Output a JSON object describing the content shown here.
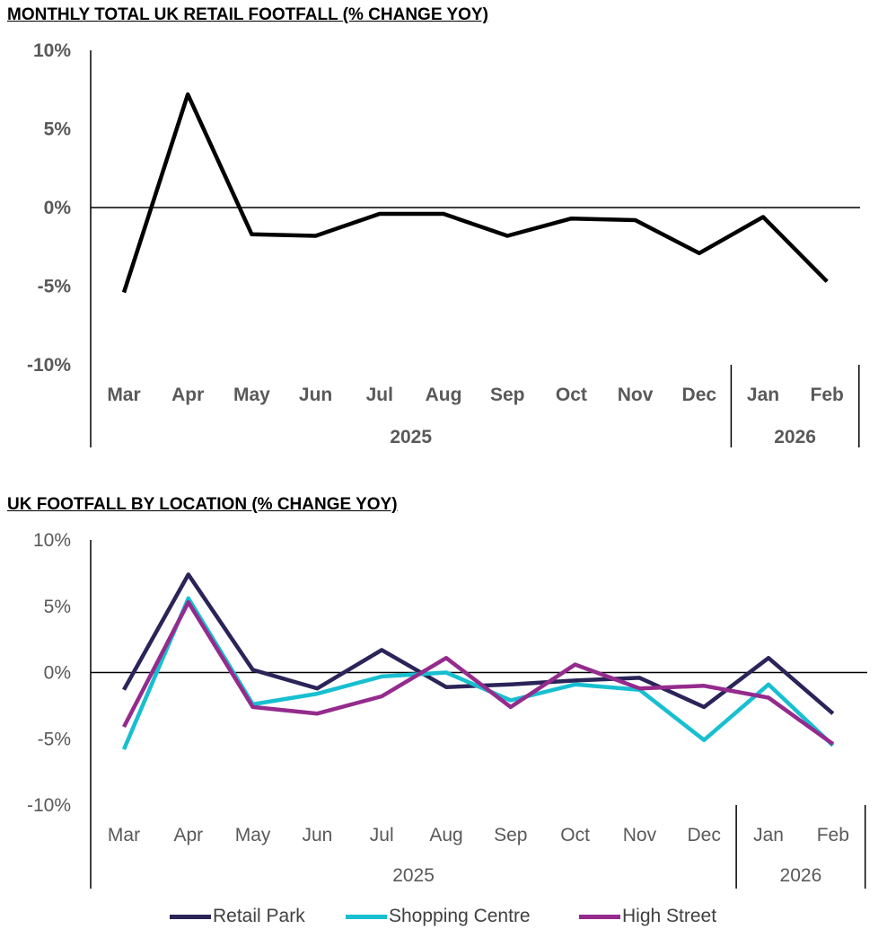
{
  "charts": {
    "footfall": {
      "title": "MONTHLY TOTAL UK RETAIL FOOTFALL (% CHANGE YOY)"
    },
    "by_location": {
      "title": "UK FOOTFALL BY LOCATION (% CHANGE YOY)"
    }
  },
  "chart_data": [
    {
      "type": "line",
      "title": "MONTHLY TOTAL UK RETAIL FOOTFALL (% CHANGE YOY)",
      "categories": [
        "Mar",
        "Apr",
        "May",
        "Jun",
        "Jul",
        "Aug",
        "Sep",
        "Oct",
        "Nov",
        "Dec",
        "Jan",
        "Feb"
      ],
      "category_groups": [
        {
          "label": "2025",
          "count": 10
        },
        {
          "label": "2026",
          "count": 2
        }
      ],
      "series": [
        {
          "values": [
            -5.4,
            7.2,
            -1.7,
            -1.8,
            -0.4,
            -0.4,
            -1.8,
            -0.7,
            -0.8,
            -2.9,
            -0.6,
            -4.7
          ],
          "color": "#000000"
        }
      ],
      "yticks": [
        "10%",
        "5%",
        "0%",
        "-5%",
        "-10%"
      ],
      "ylim": [
        -10,
        10
      ],
      "tick_style": "bold",
      "grid": false
    },
    {
      "type": "line",
      "title": "UK FOOTFALL BY LOCATION (% CHANGE YOY)",
      "categories": [
        "Mar",
        "Apr",
        "May",
        "Jun",
        "Jul",
        "Aug",
        "Sep",
        "Oct",
        "Nov",
        "Dec",
        "Jan",
        "Feb"
      ],
      "category_groups": [
        {
          "label": "2025",
          "count": 10
        },
        {
          "label": "2026",
          "count": 2
        }
      ],
      "series": [
        {
          "name": "Retail Park",
          "color": "#2A2459",
          "values": [
            -1.3,
            7.4,
            0.2,
            -1.2,
            1.7,
            -1.1,
            -0.9,
            -0.6,
            -0.4,
            -2.6,
            1.1,
            -3.1
          ]
        },
        {
          "name": "Shopping Centre",
          "color": "#17BFD0",
          "values": [
            -5.8,
            5.6,
            -2.4,
            -1.6,
            -0.3,
            0.0,
            -2.1,
            -0.9,
            -1.3,
            -5.1,
            -0.9,
            -5.5
          ]
        },
        {
          "name": "High Street",
          "color": "#942B8D",
          "values": [
            -4.1,
            5.3,
            -2.6,
            -3.1,
            -1.8,
            1.1,
            -2.6,
            0.6,
            -1.2,
            -1.0,
            -1.9,
            -5.4
          ]
        }
      ],
      "yticks": [
        "10%",
        "5%",
        "0%",
        "-5%",
        "-10%"
      ],
      "ylim": [
        -10,
        10
      ],
      "tick_style": "regular",
      "legend": "bottom",
      "grid": false
    }
  ]
}
